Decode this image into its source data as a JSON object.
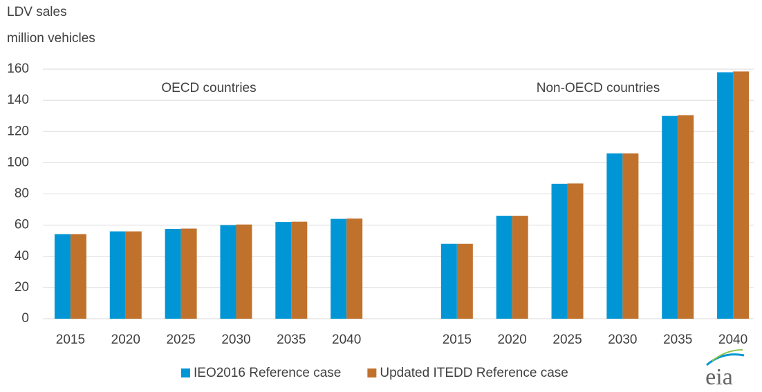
{
  "chart_data": {
    "type": "bar",
    "title": "LDV sales",
    "y_label": "million vehicles",
    "annotations": [
      "OECD countries",
      "Non-OECD countries"
    ],
    "categories": [
      "2015",
      "2020",
      "2025",
      "2030",
      "2035",
      "2040",
      null,
      "2015",
      "2020",
      "2025",
      "2030",
      "2035",
      "2040"
    ],
    "series": [
      {
        "name": "IEO2016 Reference case",
        "color": "#0096d6",
        "values": [
          54.2,
          56,
          57.6,
          60,
          62,
          64,
          null,
          48,
          66,
          86.5,
          106,
          130,
          158
        ]
      },
      {
        "name": "Updated ITEDD Reference case",
        "color": "#c0722d",
        "values": [
          54.2,
          56,
          57.8,
          60.4,
          62.2,
          64.2,
          null,
          48,
          66,
          86.7,
          106,
          130.5,
          158.5
        ]
      }
    ],
    "ylim": [
      0,
      160
    ],
    "yticks": [
      0,
      20,
      40,
      60,
      80,
      100,
      120,
      140,
      160
    ],
    "grid": true,
    "legend": "bottom",
    "logo_text": "eia"
  }
}
